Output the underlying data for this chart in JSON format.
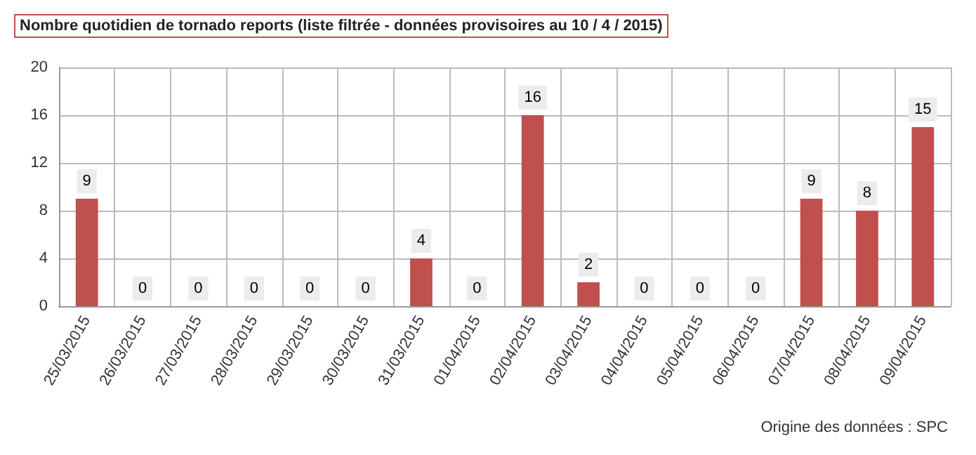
{
  "chart_data": {
    "type": "bar",
    "title": "Nombre quotidien de tornado reports (liste filtrée - données provisoires au 10 / 4 / 2015)",
    "categories": [
      "25/03/2015",
      "26/03/2015",
      "27/03/2015",
      "28/03/2015",
      "29/03/2015",
      "30/03/2015",
      "31/03/2015",
      "01/04/2015",
      "02/04/2015",
      "03/04/2015",
      "04/04/2015",
      "05/04/2015",
      "06/04/2015",
      "07/04/2015",
      "08/04/2015",
      "09/04/2015"
    ],
    "values": [
      9,
      0,
      0,
      0,
      0,
      0,
      4,
      0,
      16,
      2,
      0,
      0,
      0,
      9,
      8,
      15
    ],
    "color": "#c0504d",
    "ylim": [
      0,
      20
    ],
    "yticks": [
      0,
      4,
      8,
      12,
      16,
      20
    ],
    "grid": true,
    "data_labels": true,
    "annotations": [
      "Origine des données : SPC"
    ]
  }
}
